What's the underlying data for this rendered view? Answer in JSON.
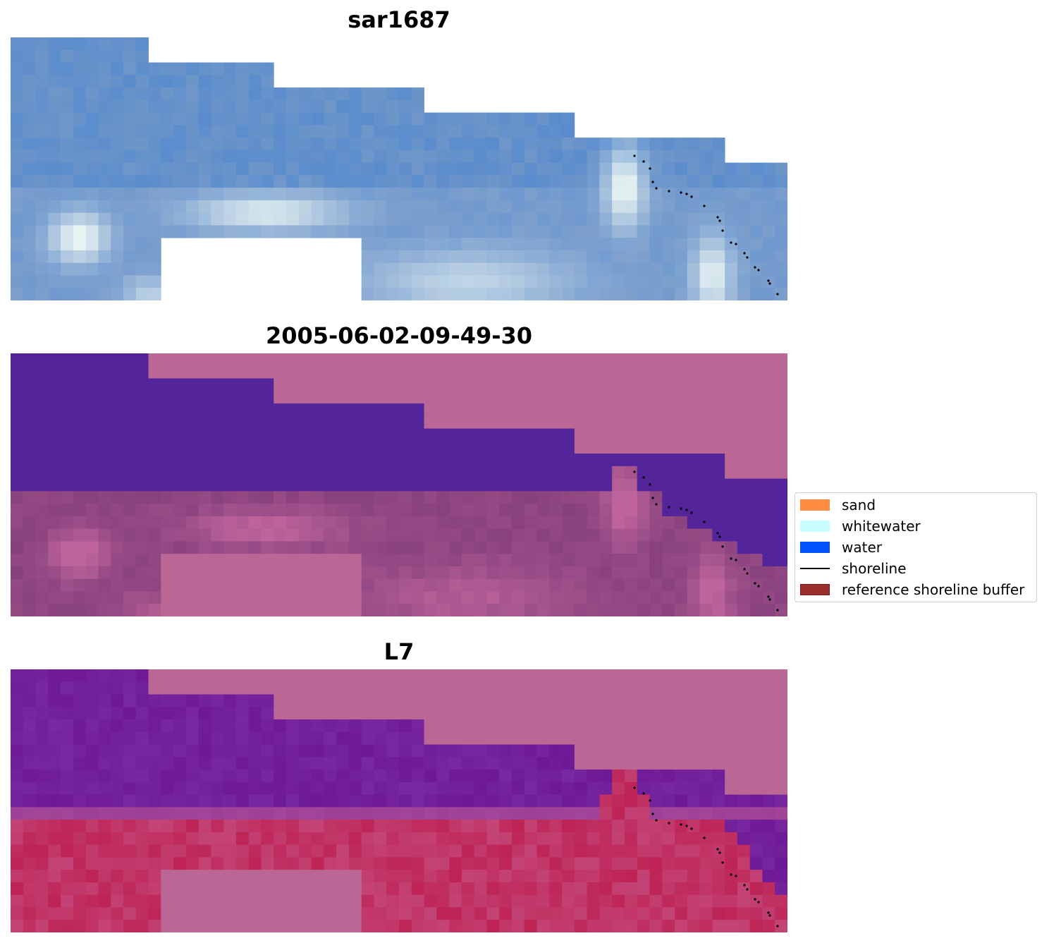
{
  "panels": [
    {
      "title": "sar1687",
      "style": "rgb"
    },
    {
      "title": "2005-06-02-09-49-30",
      "style": "classified"
    },
    {
      "title": "L7",
      "style": "index"
    }
  ],
  "legend": {
    "items": [
      {
        "label": "sand",
        "color": "#ff8c40",
        "kind": "patch"
      },
      {
        "label": "whitewater",
        "color": "#c8fdfd",
        "kind": "patch"
      },
      {
        "label": "water",
        "color": "#0053ff",
        "kind": "patch"
      },
      {
        "label": "shoreline",
        "color": "#000000",
        "kind": "line"
      },
      {
        "label": "reference shoreline buffer",
        "color": "#9b2d2d",
        "kind": "patch"
      }
    ]
  },
  "colors": {
    "nodata": "#bb6796",
    "water_class": "#53249a",
    "shoreline_points": "#000000"
  }
}
